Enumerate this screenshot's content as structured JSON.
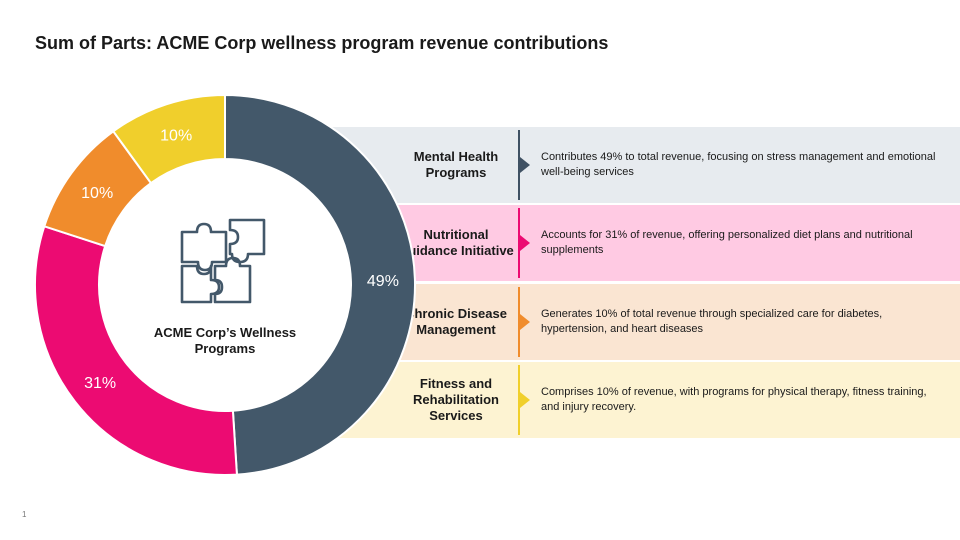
{
  "title": "Sum of Parts: ACME Corp wellness program revenue contributions",
  "center_label": "ACME Corp’s Wellness Programs",
  "center_icon": "puzzle-icon",
  "slide_number": "1",
  "colors": {
    "slate": "#43586a",
    "magenta": "#ec0b72",
    "orange": "#f08c2c",
    "yellow": "#f0cf2c",
    "band_slate": "#e7ebef",
    "band_magenta": "#ffcae3",
    "band_orange": "#fae5d2",
    "band_yellow": "#fdf3d2",
    "divider_slate": "#3f5163",
    "divider_magenta": "#ec0b72",
    "divider_orange": "#f08c2c",
    "divider_yellow": "#f0cf2c"
  },
  "chart_data": {
    "type": "pie",
    "donut": true,
    "series": [
      {
        "name": "Mental Health Programs",
        "value": 49,
        "label": "49%",
        "color": "#43586a"
      },
      {
        "name": "Nutritional Guidance Initiative",
        "value": 31,
        "label": "31%",
        "color": "#ec0b72"
      },
      {
        "name": "Chronic Disease Management",
        "value": 10,
        "label": "10%",
        "color": "#f08c2c"
      },
      {
        "name": "Fitness and Rehabilitation Services",
        "value": 10,
        "label": "10%",
        "color": "#f0cf2c"
      }
    ]
  },
  "bands": [
    {
      "label": "Mental Health Programs",
      "description": "Contributes 49% to total revenue, focusing on stress management and emotional well-being services"
    },
    {
      "label": "Nutritional Guidance Initiative",
      "description": "Accounts for 31% of revenue, offering personalized diet plans and nutritional supplements"
    },
    {
      "label": "Chronic Disease Management",
      "description": "Generates 10% of total revenue through specialized care for diabetes, hypertension, and heart diseases"
    },
    {
      "label": "Fitness and Rehabilitation Services",
      "description": "Comprises 10% of revenue, with programs for physical therapy, fitness training, and injury recovery."
    }
  ]
}
